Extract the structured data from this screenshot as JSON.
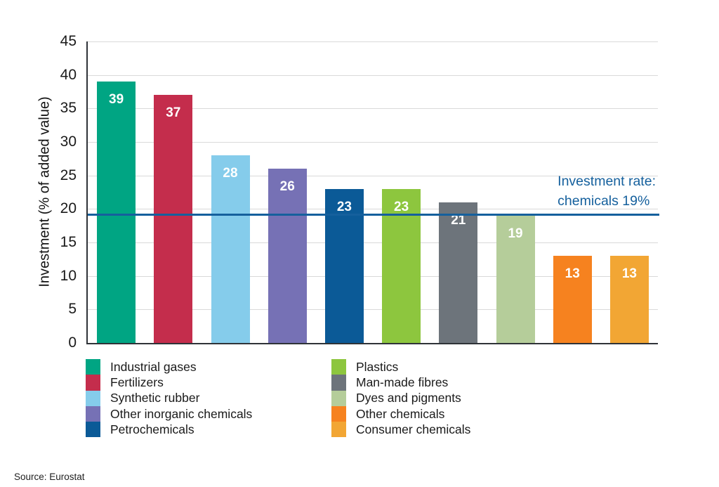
{
  "chart_data": {
    "type": "bar",
    "title": "",
    "ylabel": "Investment (% of added value)",
    "ylim": [
      0,
      45
    ],
    "yticks": [
      0,
      5,
      10,
      15,
      20,
      25,
      30,
      35,
      40,
      45
    ],
    "grid": "horizontal gridlines on",
    "legend_position": "bottom, two columns",
    "categories": [
      "Industrial gases",
      "Fertilizers",
      "Synthetic rubber",
      "Other inorganic chemicals",
      "Petrochemicals",
      "Plastics",
      "Man-made fibres",
      "Dyes and pigments",
      "Other chemicals",
      "Consumer chemicals"
    ],
    "values": [
      39,
      37,
      28,
      26,
      23,
      23,
      21,
      19,
      13,
      13
    ],
    "bar_colors": [
      "#00A583",
      "#C42D4C",
      "#85CCEB",
      "#7671B5",
      "#0B5A97",
      "#8DC63E",
      "#6D747B",
      "#B5CD9A",
      "#F6821F",
      "#F2A634"
    ],
    "reference_line": {
      "value": 19,
      "color": "#15609D",
      "label_line1": "Investment rate:",
      "label_line2": "chemicals 19%"
    }
  },
  "source": "Source: Eurostat",
  "colors": {
    "background": "#FFFFFF",
    "axis": "#2F3338",
    "gridline": "#D9D9D9",
    "tick_text": "#1A1A1A",
    "bar_value_text": "#FFFFFF",
    "annotation_text": "#15609D",
    "legend_text": "#1A1A1A"
  }
}
